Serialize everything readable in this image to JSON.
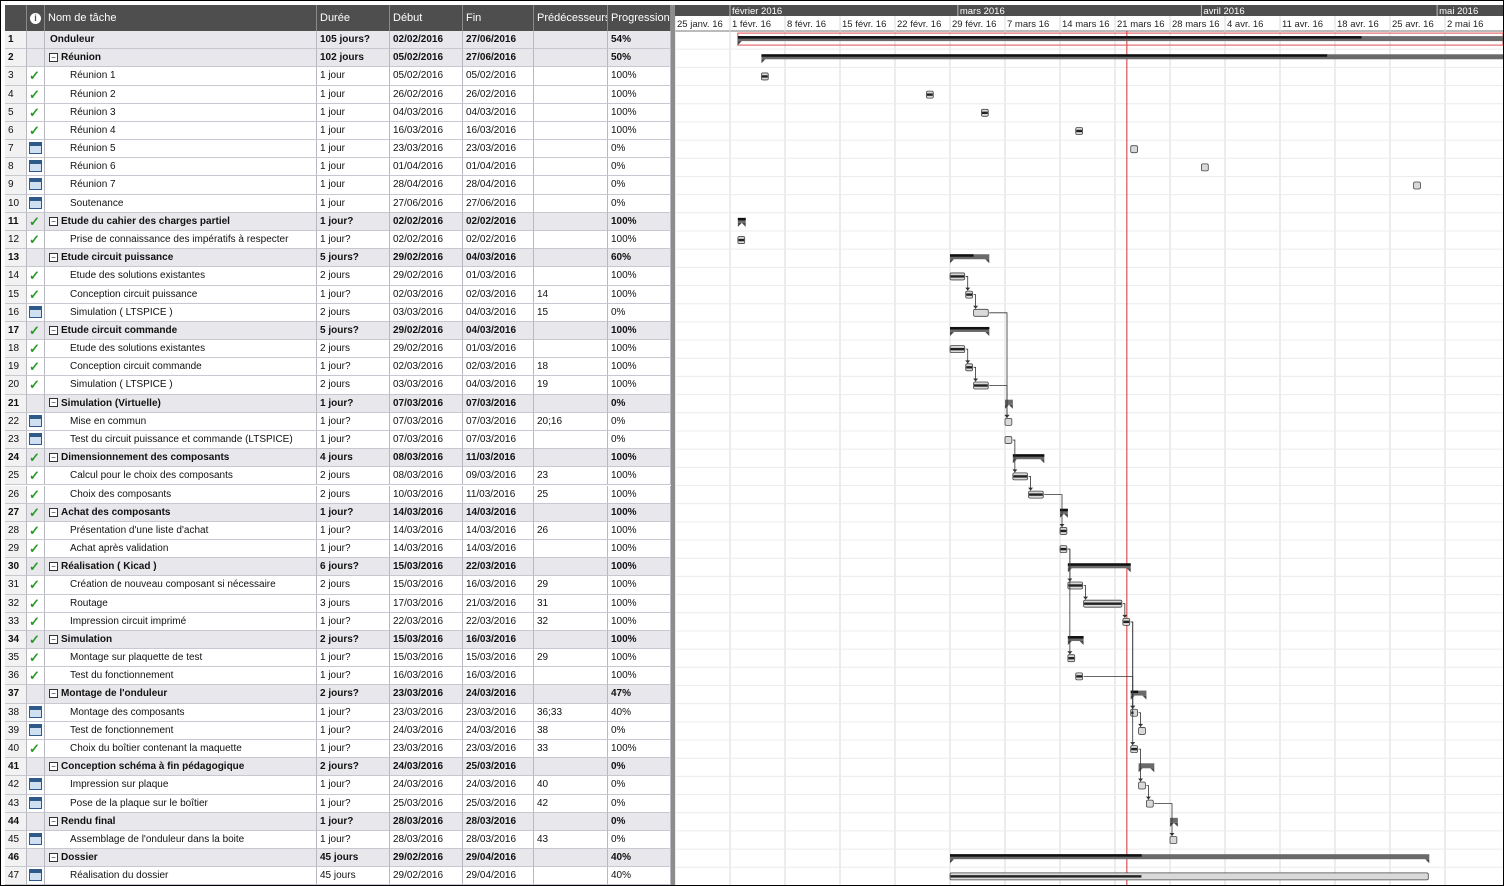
{
  "headers": {
    "id": "",
    "info_icon": "info-icon",
    "name": "Nom de tâche",
    "duration": "Durée",
    "start": "Début",
    "finish": "Fin",
    "predecessors": "Prédécesseurs",
    "progress": "Progression"
  },
  "months": [
    "février 2016",
    "mars 2016",
    "avril 2016",
    "mai 2016"
  ],
  "weeks": [
    "25 janv. 16",
    "1 févr. 16",
    "8 févr. 16",
    "15 févr. 16",
    "22 févr. 16",
    "29 févr. 16",
    "7 mars 16",
    "14 mars 16",
    "21 mars 16",
    "28 mars 16",
    "4 avr. 16",
    "11 avr. 16",
    "18 avr. 16",
    "25 avr. 16",
    "2 mai 16"
  ],
  "today": "2016-03-22",
  "colors": {
    "header": "#4e4e4e",
    "summary_row": "#e8e8ec",
    "today_line": "#d03030",
    "check": "#2b9a2b"
  },
  "tasks": [
    {
      "id": "1",
      "icon": "none",
      "name": "Onduleur",
      "duration": "105 jours?",
      "start": "02/02/2016",
      "finish": "27/06/2016",
      "pred": "",
      "progress": "54%",
      "summary": true,
      "level": 0,
      "toggle": ""
    },
    {
      "id": "2",
      "icon": "none",
      "name": "Réunion",
      "duration": "102 jours",
      "start": "05/02/2016",
      "finish": "27/06/2016",
      "pred": "",
      "progress": "50%",
      "summary": true,
      "level": 1,
      "toggle": "⊟"
    },
    {
      "id": "3",
      "icon": "check",
      "name": "Réunion 1",
      "duration": "1 jour",
      "start": "05/02/2016",
      "finish": "05/02/2016",
      "pred": "",
      "progress": "100%",
      "summary": false,
      "level": 2,
      "toggle": ""
    },
    {
      "id": "4",
      "icon": "check",
      "name": "Réunion 2",
      "duration": "1 jour",
      "start": "26/02/2016",
      "finish": "26/02/2016",
      "pred": "",
      "progress": "100%",
      "summary": false,
      "level": 2,
      "toggle": ""
    },
    {
      "id": "5",
      "icon": "check",
      "name": "Réunion 3",
      "duration": "1 jour",
      "start": "04/03/2016",
      "finish": "04/03/2016",
      "pred": "",
      "progress": "100%",
      "summary": false,
      "level": 2,
      "toggle": ""
    },
    {
      "id": "6",
      "icon": "check",
      "name": "Réunion 4",
      "duration": "1 jour",
      "start": "16/03/2016",
      "finish": "16/03/2016",
      "pred": "",
      "progress": "100%",
      "summary": false,
      "level": 2,
      "toggle": ""
    },
    {
      "id": "7",
      "icon": "calendar",
      "name": "Réunion 5",
      "duration": "1 jour",
      "start": "23/03/2016",
      "finish": "23/03/2016",
      "pred": "",
      "progress": "0%",
      "summary": false,
      "level": 2,
      "toggle": ""
    },
    {
      "id": "8",
      "icon": "calendar",
      "name": "Réunion 6",
      "duration": "1 jour",
      "start": "01/04/2016",
      "finish": "01/04/2016",
      "pred": "",
      "progress": "0%",
      "summary": false,
      "level": 2,
      "toggle": ""
    },
    {
      "id": "9",
      "icon": "calendar",
      "name": "Réunion 7",
      "duration": "1 jour",
      "start": "28/04/2016",
      "finish": "28/04/2016",
      "pred": "",
      "progress": "0%",
      "summary": false,
      "level": 2,
      "toggle": ""
    },
    {
      "id": "10",
      "icon": "calendar",
      "name": "Soutenance",
      "duration": "1 jour",
      "start": "27/06/2016",
      "finish": "27/06/2016",
      "pred": "",
      "progress": "0%",
      "summary": false,
      "level": 2,
      "toggle": ""
    },
    {
      "id": "11",
      "icon": "check",
      "name": "Etude du cahier des charges partiel",
      "duration": "1 jour?",
      "start": "02/02/2016",
      "finish": "02/02/2016",
      "pred": "",
      "progress": "100%",
      "summary": true,
      "level": 1,
      "toggle": "⊟"
    },
    {
      "id": "12",
      "icon": "check",
      "name": "Prise de connaissance des impératifs à respecter",
      "duration": "1 jour?",
      "start": "02/02/2016",
      "finish": "02/02/2016",
      "pred": "",
      "progress": "100%",
      "summary": false,
      "level": 2,
      "toggle": ""
    },
    {
      "id": "13",
      "icon": "none",
      "name": "Etude circuit puissance",
      "duration": "5 jours?",
      "start": "29/02/2016",
      "finish": "04/03/2016",
      "pred": "",
      "progress": "60%",
      "summary": true,
      "level": 1,
      "toggle": "⊟"
    },
    {
      "id": "14",
      "icon": "check",
      "name": "Etude des solutions existantes",
      "duration": "2 jours",
      "start": "29/02/2016",
      "finish": "01/03/2016",
      "pred": "",
      "progress": "100%",
      "summary": false,
      "level": 2,
      "toggle": ""
    },
    {
      "id": "15",
      "icon": "check",
      "name": "Conception circuit puissance",
      "duration": "1 jour?",
      "start": "02/03/2016",
      "finish": "02/03/2016",
      "pred": "14",
      "progress": "100%",
      "summary": false,
      "level": 2,
      "toggle": ""
    },
    {
      "id": "16",
      "icon": "calendar",
      "name": "Simulation ( LTSPICE )",
      "duration": "2 jours",
      "start": "03/03/2016",
      "finish": "04/03/2016",
      "pred": "15",
      "progress": "0%",
      "summary": false,
      "level": 2,
      "toggle": ""
    },
    {
      "id": "17",
      "icon": "check",
      "name": "Etude circuit commande",
      "duration": "5 jours?",
      "start": "29/02/2016",
      "finish": "04/03/2016",
      "pred": "",
      "progress": "100%",
      "summary": true,
      "level": 1,
      "toggle": "⊟"
    },
    {
      "id": "18",
      "icon": "check",
      "name": "Etude des solutions existantes",
      "duration": "2 jours",
      "start": "29/02/2016",
      "finish": "01/03/2016",
      "pred": "",
      "progress": "100%",
      "summary": false,
      "level": 2,
      "toggle": ""
    },
    {
      "id": "19",
      "icon": "check",
      "name": "Conception circuit commande",
      "duration": "1 jour?",
      "start": "02/03/2016",
      "finish": "02/03/2016",
      "pred": "18",
      "progress": "100%",
      "summary": false,
      "level": 2,
      "toggle": ""
    },
    {
      "id": "20",
      "icon": "check",
      "name": "Simulation ( LTSPICE )",
      "duration": "2 jours",
      "start": "03/03/2016",
      "finish": "04/03/2016",
      "pred": "19",
      "progress": "100%",
      "summary": false,
      "level": 2,
      "toggle": ""
    },
    {
      "id": "21",
      "icon": "none",
      "name": "Simulation (Virtuelle)",
      "duration": "1 jour?",
      "start": "07/03/2016",
      "finish": "07/03/2016",
      "pred": "",
      "progress": "0%",
      "summary": true,
      "level": 1,
      "toggle": "⊟"
    },
    {
      "id": "22",
      "icon": "calendar",
      "name": "Mise en commun",
      "duration": "1 jour?",
      "start": "07/03/2016",
      "finish": "07/03/2016",
      "pred": "20;16",
      "progress": "0%",
      "summary": false,
      "level": 2,
      "toggle": ""
    },
    {
      "id": "23",
      "icon": "calendar",
      "name": "Test du circuit puissance et commande (LTSPICE)",
      "duration": "1 jour?",
      "start": "07/03/2016",
      "finish": "07/03/2016",
      "pred": "",
      "progress": "0%",
      "summary": false,
      "level": 2,
      "toggle": ""
    },
    {
      "id": "24",
      "icon": "check",
      "name": "Dimensionnement des composants",
      "duration": "4 jours",
      "start": "08/03/2016",
      "finish": "11/03/2016",
      "pred": "",
      "progress": "100%",
      "summary": true,
      "level": 1,
      "toggle": "⊟"
    },
    {
      "id": "25",
      "icon": "check",
      "name": "Calcul pour le choix des composants",
      "duration": "2 jours",
      "start": "08/03/2016",
      "finish": "09/03/2016",
      "pred": "23",
      "progress": "100%",
      "summary": false,
      "level": 2,
      "toggle": ""
    },
    {
      "id": "26",
      "icon": "check",
      "name": "Choix des composants",
      "duration": "2 jours",
      "start": "10/03/2016",
      "finish": "11/03/2016",
      "pred": "25",
      "progress": "100%",
      "summary": false,
      "level": 2,
      "toggle": ""
    },
    {
      "id": "27",
      "icon": "check",
      "name": "Achat des composants",
      "duration": "1 jour?",
      "start": "14/03/2016",
      "finish": "14/03/2016",
      "pred": "",
      "progress": "100%",
      "summary": true,
      "level": 1,
      "toggle": "⊟"
    },
    {
      "id": "28",
      "icon": "check",
      "name": "Présentation d'une liste d'achat",
      "duration": "1 jour?",
      "start": "14/03/2016",
      "finish": "14/03/2016",
      "pred": "26",
      "progress": "100%",
      "summary": false,
      "level": 2,
      "toggle": ""
    },
    {
      "id": "29",
      "icon": "check",
      "name": "Achat après validation",
      "duration": "1 jour?",
      "start": "14/03/2016",
      "finish": "14/03/2016",
      "pred": "",
      "progress": "100%",
      "summary": false,
      "level": 2,
      "toggle": ""
    },
    {
      "id": "30",
      "icon": "check",
      "name": "Réalisation ( Kicad )",
      "duration": "6 jours?",
      "start": "15/03/2016",
      "finish": "22/03/2016",
      "pred": "",
      "progress": "100%",
      "summary": true,
      "level": 1,
      "toggle": "⊟"
    },
    {
      "id": "31",
      "icon": "check",
      "name": "Création de nouveau composant si nécessaire",
      "duration": "2 jours",
      "start": "15/03/2016",
      "finish": "16/03/2016",
      "pred": "29",
      "progress": "100%",
      "summary": false,
      "level": 2,
      "toggle": ""
    },
    {
      "id": "32",
      "icon": "check",
      "name": "Routage",
      "duration": "3 jours",
      "start": "17/03/2016",
      "finish": "21/03/2016",
      "pred": "31",
      "progress": "100%",
      "summary": false,
      "level": 2,
      "toggle": ""
    },
    {
      "id": "33",
      "icon": "check",
      "name": "Impression circuit imprimé",
      "duration": "1 jour?",
      "start": "22/03/2016",
      "finish": "22/03/2016",
      "pred": "32",
      "progress": "100%",
      "summary": false,
      "level": 2,
      "toggle": ""
    },
    {
      "id": "34",
      "icon": "check",
      "name": "Simulation",
      "duration": "2 jours?",
      "start": "15/03/2016",
      "finish": "16/03/2016",
      "pred": "",
      "progress": "100%",
      "summary": true,
      "level": 1,
      "toggle": "⊟"
    },
    {
      "id": "35",
      "icon": "check",
      "name": "Montage sur plaquette de test",
      "duration": "1 jour?",
      "start": "15/03/2016",
      "finish": "15/03/2016",
      "pred": "29",
      "progress": "100%",
      "summary": false,
      "level": 2,
      "toggle": ""
    },
    {
      "id": "36",
      "icon": "check",
      "name": "Test du fonctionnement",
      "duration": "1 jour?",
      "start": "16/03/2016",
      "finish": "16/03/2016",
      "pred": "",
      "progress": "100%",
      "summary": false,
      "level": 2,
      "toggle": ""
    },
    {
      "id": "37",
      "icon": "none",
      "name": "Montage de l'onduleur",
      "duration": "2 jours?",
      "start": "23/03/2016",
      "finish": "24/03/2016",
      "pred": "",
      "progress": "47%",
      "summary": true,
      "level": 1,
      "toggle": "⊟"
    },
    {
      "id": "38",
      "icon": "calendar",
      "name": "Montage des composants",
      "duration": "1 jour?",
      "start": "23/03/2016",
      "finish": "23/03/2016",
      "pred": "36;33",
      "progress": "40%",
      "summary": false,
      "level": 2,
      "toggle": ""
    },
    {
      "id": "39",
      "icon": "calendar",
      "name": "Test de fonctionnement",
      "duration": "1 jour?",
      "start": "24/03/2016",
      "finish": "24/03/2016",
      "pred": "38",
      "progress": "0%",
      "summary": false,
      "level": 2,
      "toggle": ""
    },
    {
      "id": "40",
      "icon": "check",
      "name": "Choix du boîtier contenant la maquette",
      "duration": "1 jour?",
      "start": "23/03/2016",
      "finish": "23/03/2016",
      "pred": "33",
      "progress": "100%",
      "summary": false,
      "level": 2,
      "toggle": ""
    },
    {
      "id": "41",
      "icon": "none",
      "name": "Conception schéma à fin pédagogique",
      "duration": "2 jours?",
      "start": "24/03/2016",
      "finish": "25/03/2016",
      "pred": "",
      "progress": "0%",
      "summary": true,
      "level": 1,
      "toggle": "⊟"
    },
    {
      "id": "42",
      "icon": "calendar",
      "name": "Impression sur plaque",
      "duration": "1 jour?",
      "start": "24/03/2016",
      "finish": "24/03/2016",
      "pred": "40",
      "progress": "0%",
      "summary": false,
      "level": 2,
      "toggle": ""
    },
    {
      "id": "43",
      "icon": "calendar",
      "name": "Pose de la plaque sur le boîtier",
      "duration": "1 jour?",
      "start": "25/03/2016",
      "finish": "25/03/2016",
      "pred": "42",
      "progress": "0%",
      "summary": false,
      "level": 2,
      "toggle": ""
    },
    {
      "id": "44",
      "icon": "none",
      "name": "Rendu final",
      "duration": "1 jour?",
      "start": "28/03/2016",
      "finish": "28/03/2016",
      "pred": "",
      "progress": "0%",
      "summary": true,
      "level": 1,
      "toggle": "⊟"
    },
    {
      "id": "45",
      "icon": "calendar",
      "name": "Assemblage de l'onduleur dans la boite",
      "duration": "1 jour?",
      "start": "28/03/2016",
      "finish": "28/03/2016",
      "pred": "43",
      "progress": "0%",
      "summary": false,
      "level": 2,
      "toggle": ""
    },
    {
      "id": "46",
      "icon": "none",
      "name": "Dossier",
      "duration": "45 jours",
      "start": "29/02/2016",
      "finish": "29/04/2016",
      "pred": "",
      "progress": "40%",
      "summary": true,
      "level": 1,
      "toggle": "⊟"
    },
    {
      "id": "47",
      "icon": "calendar",
      "name": "Réalisation du dossier",
      "duration": "45 jours",
      "start": "29/02/2016",
      "finish": "29/04/2016",
      "pred": "",
      "progress": "40%",
      "summary": false,
      "level": 2,
      "toggle": ""
    }
  ]
}
